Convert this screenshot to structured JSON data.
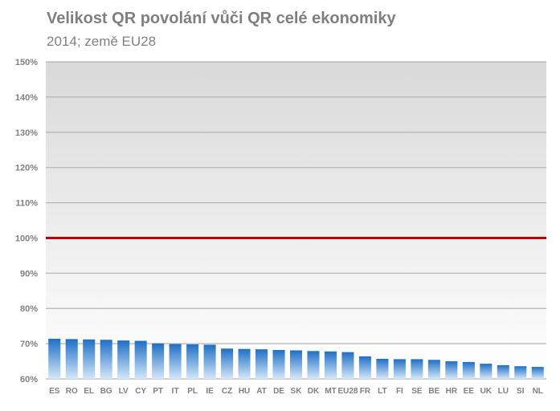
{
  "chart_data": {
    "type": "bar",
    "title": "Velikost QR povolání vůči QR celé ekonomiky",
    "subtitle": "2014; země EU28",
    "xlabel": "",
    "ylabel": "",
    "ylim": [
      60,
      150
    ],
    "yticks": [
      "60%",
      "70%",
      "80%",
      "90%",
      "100%",
      "110%",
      "120%",
      "130%",
      "140%",
      "150%"
    ],
    "grid": true,
    "reference_line": {
      "value": 100,
      "color": "#c00000"
    },
    "categories": [
      "ES",
      "RO",
      "EL",
      "BG",
      "LV",
      "CY",
      "PT",
      "IT",
      "PL",
      "IE",
      "CZ",
      "HU",
      "AT",
      "DE",
      "SK",
      "DK",
      "MT",
      "EU28",
      "FR",
      "LT",
      "FI",
      "SE",
      "BE",
      "HR",
      "EE",
      "UK",
      "LU",
      "SI",
      "NL"
    ],
    "values": [
      71.4,
      71.3,
      71.2,
      71.1,
      70.9,
      70.8,
      70.1,
      69.9,
      69.8,
      69.7,
      68.6,
      68.5,
      68.4,
      68.2,
      68.1,
      67.9,
      67.8,
      67.6,
      66.4,
      65.7,
      65.6,
      65.6,
      65.4,
      65.0,
      64.8,
      64.3,
      63.9,
      63.6,
      63.4
    ],
    "colors": {
      "bar_top": "#1f6fc5",
      "bar_bottom": "#d5e8f8",
      "reference": "#c00000",
      "grid": "#b3b3b3"
    }
  }
}
